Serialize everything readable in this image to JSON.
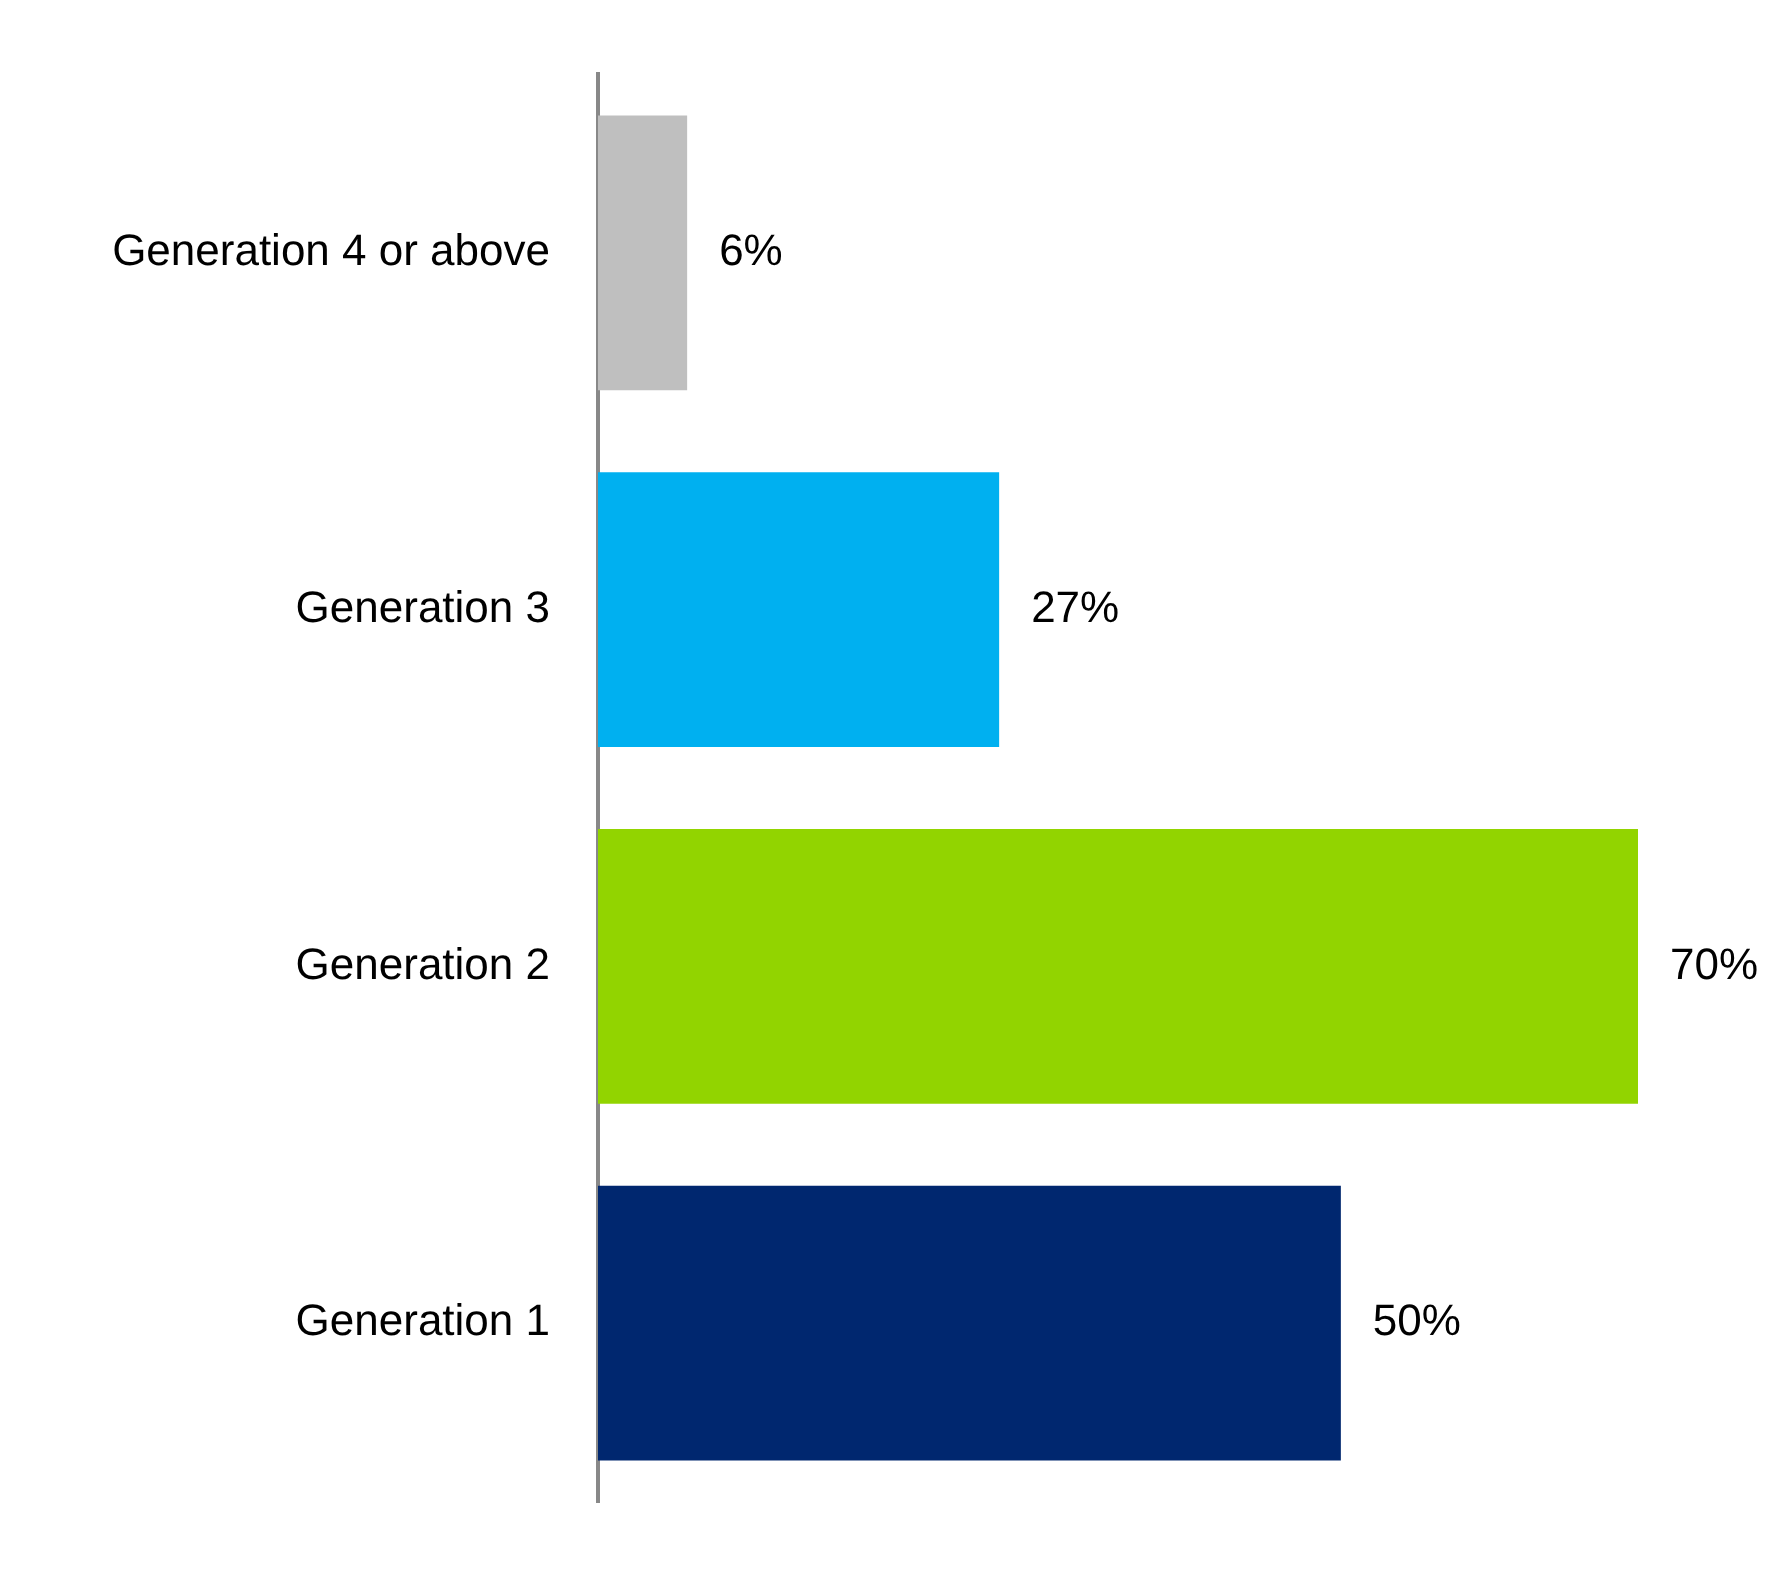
{
  "chart_data": {
    "type": "bar",
    "orientation": "horizontal",
    "categories": [
      "Generation 4 or above",
      "Generation 3",
      "Generation 2",
      "Generation 1"
    ],
    "values": [
      6,
      27,
      70,
      50
    ],
    "colors": [
      "#bfbfbf",
      "#00b0f0",
      "#92d400",
      "#00276f"
    ],
    "value_labels": [
      "6%",
      "27%",
      "70%",
      "50%"
    ],
    "grid": false,
    "legend": false,
    "tick_labels": "y"
  }
}
